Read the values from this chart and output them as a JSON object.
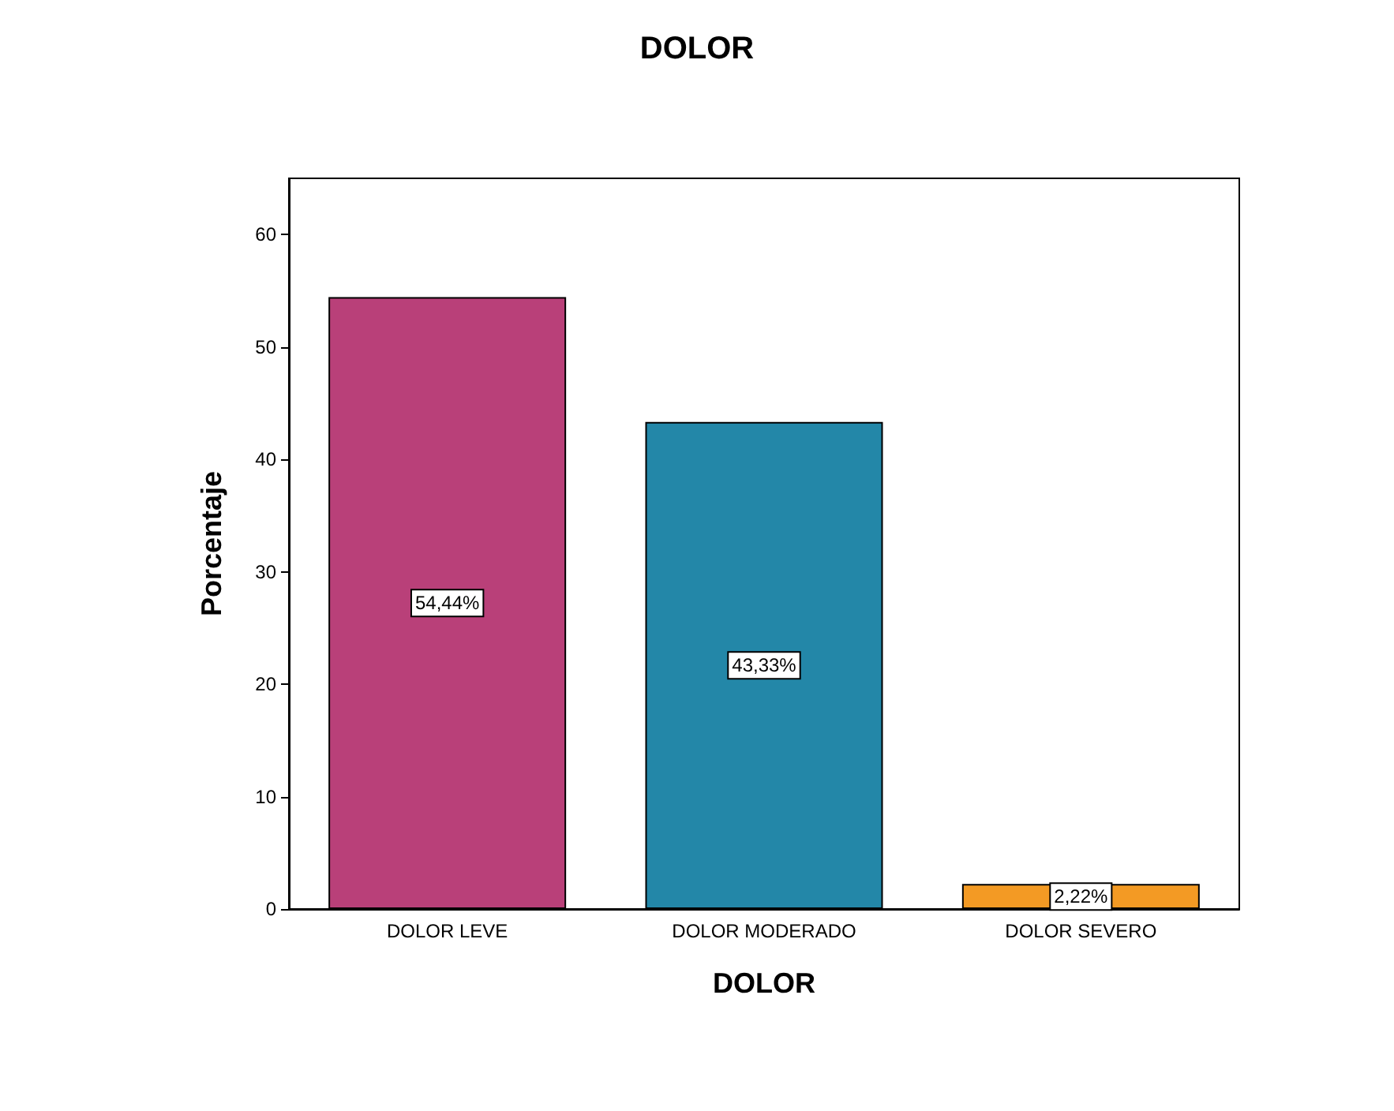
{
  "chart_data": {
    "type": "bar",
    "title": "DOLOR",
    "xlabel": "DOLOR",
    "ylabel": "Porcentaje",
    "categories": [
      "DOLOR LEVE",
      "DOLOR MODERADO",
      "DOLOR SEVERO"
    ],
    "values": [
      54.44,
      43.33,
      2.22
    ],
    "colors": [
      "#b94079",
      "#2387a8",
      "#f39a24"
    ],
    "value_labels": [
      "54,44%",
      "43,33%",
      "2,22%"
    ],
    "ylim": [
      0,
      65
    ],
    "yticks": [
      0,
      10,
      20,
      30,
      40,
      50,
      60
    ],
    "grid": false
  }
}
